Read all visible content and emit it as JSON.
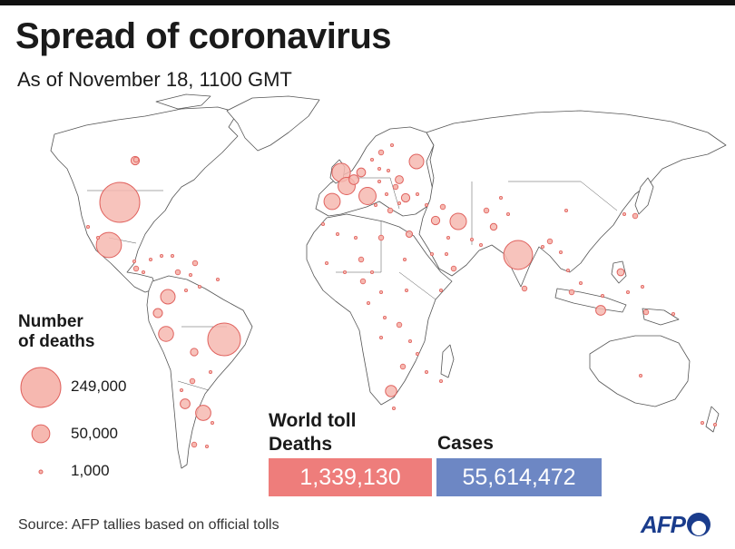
{
  "header": {
    "title": "Spread of coronavirus",
    "subtitle": "As of November 18, 1100 GMT"
  },
  "legend": {
    "title": "Number\nof deaths",
    "items": [
      {
        "label": "249,000",
        "value": 249000
      },
      {
        "label": "50,000",
        "value": 50000
      },
      {
        "label": "1,000",
        "value": 1000
      }
    ]
  },
  "totals": {
    "heading": "World toll",
    "deaths_label": "Deaths",
    "deaths_value": "1,339,130",
    "cases_label": "Cases",
    "cases_value": "55,614,472"
  },
  "footer": {
    "source": "Source: AFP tallies based on official tolls",
    "logo": "AFP"
  },
  "colors": {
    "bubble_fill": "#f6b8b0",
    "bubble_stroke": "#e0625e",
    "land_stroke": "#555555",
    "deaths_box": "#ee7d7b",
    "cases_box": "#6d87c4",
    "afp_blue": "#1a3c8c"
  },
  "map_data": {
    "type": "proportional-symbol-map",
    "bubbles": [
      {
        "region": "United States",
        "approx_deaths": 249000
      },
      {
        "region": "Brazil",
        "approx_deaths": 167000
      },
      {
        "region": "India",
        "approx_deaths": 131000
      },
      {
        "region": "Mexico",
        "approx_deaths": 99000
      },
      {
        "region": "United Kingdom",
        "approx_deaths": 53000
      },
      {
        "region": "Italy",
        "approx_deaths": 46000
      },
      {
        "region": "France",
        "approx_deaths": 46000
      },
      {
        "region": "Iran",
        "approx_deaths": 42000
      },
      {
        "region": "Spain",
        "approx_deaths": 41000
      },
      {
        "region": "Argentina",
        "approx_deaths": 36000
      },
      {
        "region": "Russia",
        "approx_deaths": 33000
      },
      {
        "region": "Colombia",
        "approx_deaths": 33000
      },
      {
        "region": "Peru",
        "approx_deaths": 35000
      },
      {
        "region": "South Africa",
        "approx_deaths": 20000
      },
      {
        "region": "Chile",
        "approx_deaths": 15000
      },
      {
        "region": "Indonesia",
        "approx_deaths": 15000
      },
      {
        "region": "Belgium",
        "approx_deaths": 15000
      },
      {
        "region": "Germany",
        "approx_deaths": 12000
      },
      {
        "region": "Ecuador",
        "approx_deaths": 13000
      },
      {
        "region": "Canada",
        "approx_deaths": 11000
      },
      {
        "region": "Iraq",
        "approx_deaths": 11000
      },
      {
        "region": "Turkey",
        "approx_deaths": 11000
      },
      {
        "region": "Bolivia",
        "approx_deaths": 8800
      },
      {
        "region": "Philippines",
        "approx_deaths": 7800
      },
      {
        "region": "Pakistan",
        "approx_deaths": 7000
      },
      {
        "region": "Ukraine",
        "approx_deaths": 10000
      },
      {
        "region": "Egypt",
        "approx_deaths": 6400
      }
    ]
  }
}
